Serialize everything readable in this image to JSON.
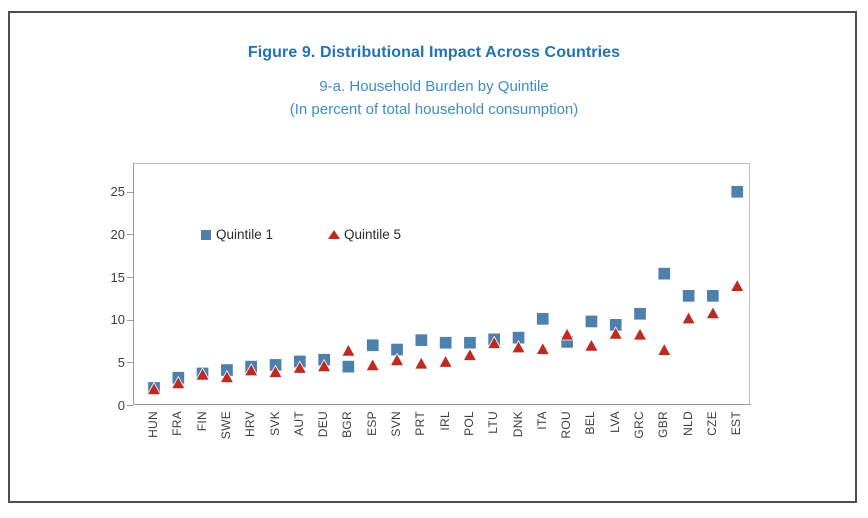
{
  "chart_data": {
    "type": "scatter",
    "title": "Figure 9. Distributional Impact Across Countries",
    "subtitle": "9-a. Household Burden by Quintile",
    "units": "(In percent of total household consumption)",
    "xlabel": "",
    "ylabel": "",
    "ylim": [
      0,
      28.4
    ],
    "yticks": [
      0,
      5,
      10,
      15,
      20,
      25
    ],
    "grid": false,
    "legend_position": "inside-top-left",
    "categories": [
      "HUN",
      "FRA",
      "FIN",
      "SWE",
      "HRV",
      "SVK",
      "AUT",
      "DEU",
      "BGR",
      "ESP",
      "SVN",
      "PRT",
      "IRL",
      "POL",
      "LTU",
      "DNK",
      "ITA",
      "ROU",
      "BEL",
      "LVA",
      "GRC",
      "GBR",
      "NLD",
      "CZE",
      "EST"
    ],
    "series": [
      {
        "name": "Quintile 1",
        "marker": "square",
        "color": "#4E80AE",
        "values": [
          2.0,
          3.2,
          3.7,
          4.1,
          4.5,
          4.7,
          5.1,
          5.3,
          4.5,
          7.0,
          6.5,
          7.6,
          7.3,
          7.3,
          7.7,
          7.9,
          10.1,
          7.4,
          9.8,
          9.4,
          10.7,
          15.4,
          12.8,
          12.8,
          25.0
        ]
      },
      {
        "name": "Quintile 5",
        "marker": "triangle",
        "color": "#BE2A21",
        "values": [
          1.9,
          2.6,
          3.6,
          3.3,
          4.1,
          3.9,
          4.4,
          4.6,
          6.4,
          4.7,
          5.3,
          4.9,
          5.1,
          5.9,
          7.3,
          6.8,
          6.6,
          8.3,
          7.0,
          8.4,
          8.3,
          6.5,
          10.2,
          10.8,
          14.0
        ]
      }
    ]
  },
  "colors": {
    "title_blue": "#2173B4",
    "subtitle_blue": "#3D8EC6",
    "series_q1_blue": "#4E80AE",
    "series_q5_red": "#BE2A21",
    "axis_text": "#3f3f3f",
    "plot_border": "#c2c2c2",
    "outer_border": "#4e4e4e"
  }
}
